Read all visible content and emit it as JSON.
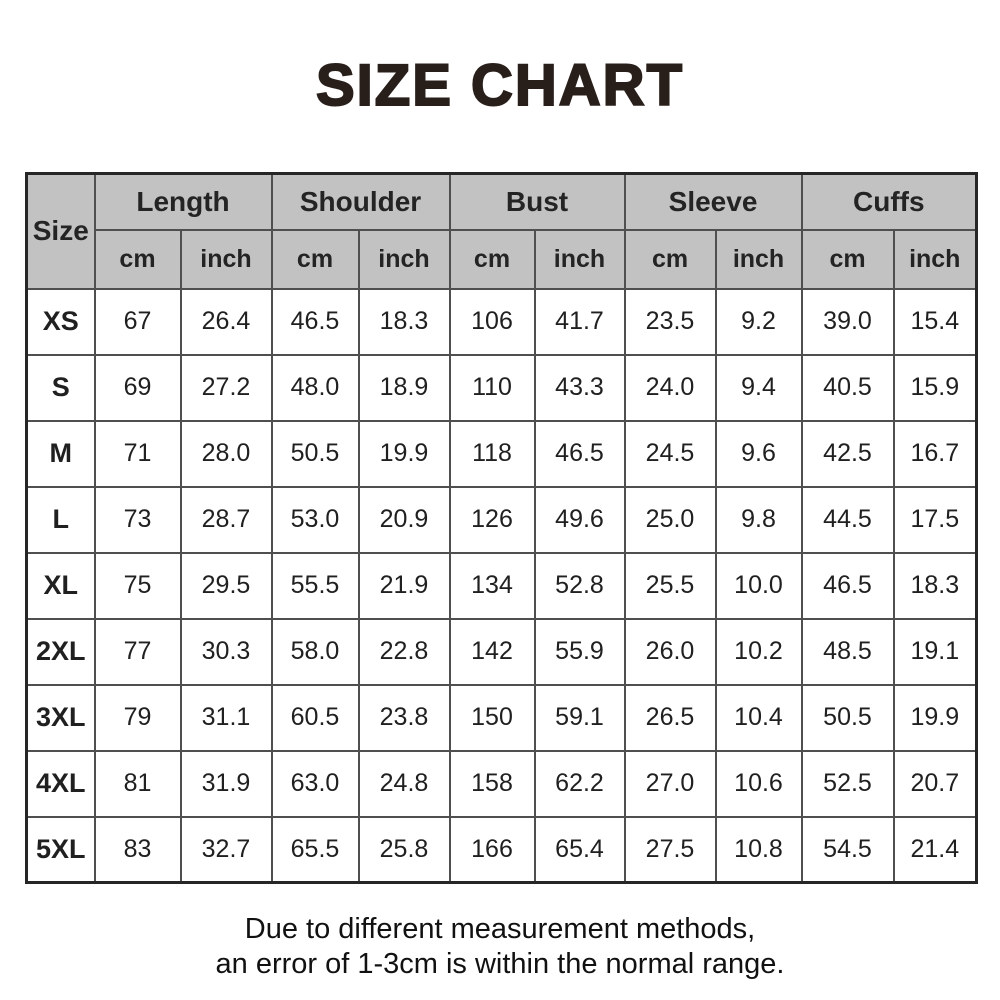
{
  "title": "SIZE CHART",
  "chart_data": {
    "type": "table",
    "title": "SIZE CHART",
    "corner_label": "Size",
    "column_groups": [
      "Length",
      "Shoulder",
      "Bust",
      "Sleeve",
      "Cuffs"
    ],
    "unit_labels": [
      "cm",
      "inch"
    ],
    "columns": [
      "Size",
      "Length cm",
      "Length inch",
      "Shoulder cm",
      "Shoulder inch",
      "Bust cm",
      "Bust inch",
      "Sleeve cm",
      "Sleeve inch",
      "Cuffs cm",
      "Cuffs inch"
    ],
    "rows": [
      {
        "size": "XS",
        "values": [
          "67",
          "26.4",
          "46.5",
          "18.3",
          "106",
          "41.7",
          "23.5",
          "9.2",
          "39.0",
          "15.4"
        ]
      },
      {
        "size": "S",
        "values": [
          "69",
          "27.2",
          "48.0",
          "18.9",
          "110",
          "43.3",
          "24.0",
          "9.4",
          "40.5",
          "15.9"
        ]
      },
      {
        "size": "M",
        "values": [
          "71",
          "28.0",
          "50.5",
          "19.9",
          "118",
          "46.5",
          "24.5",
          "9.6",
          "42.5",
          "16.7"
        ]
      },
      {
        "size": "L",
        "values": [
          "73",
          "28.7",
          "53.0",
          "20.9",
          "126",
          "49.6",
          "25.0",
          "9.8",
          "44.5",
          "17.5"
        ]
      },
      {
        "size": "XL",
        "values": [
          "75",
          "29.5",
          "55.5",
          "21.9",
          "134",
          "52.8",
          "25.5",
          "10.0",
          "46.5",
          "18.3"
        ]
      },
      {
        "size": "2XL",
        "values": [
          "77",
          "30.3",
          "58.0",
          "22.8",
          "142",
          "55.9",
          "26.0",
          "10.2",
          "48.5",
          "19.1"
        ]
      },
      {
        "size": "3XL",
        "values": [
          "79",
          "31.1",
          "60.5",
          "23.8",
          "150",
          "59.1",
          "26.5",
          "10.4",
          "50.5",
          "19.9"
        ]
      },
      {
        "size": "4XL",
        "values": [
          "81",
          "31.9",
          "63.0",
          "24.8",
          "158",
          "62.2",
          "27.0",
          "10.6",
          "52.5",
          "20.7"
        ]
      },
      {
        "size": "5XL",
        "values": [
          "83",
          "32.7",
          "65.5",
          "25.8",
          "166",
          "65.4",
          "27.5",
          "10.8",
          "54.5",
          "21.4"
        ]
      }
    ]
  },
  "note": {
    "line1": "Due to different measurement methods,",
    "line2": "an error of 1-3cm is within the normal range."
  },
  "colors": {
    "header_bg": "#c2c2c2",
    "inner_border": "#4f4f4f",
    "outer_border": "#262626",
    "text": "#202020",
    "title": "#281e1a"
  }
}
